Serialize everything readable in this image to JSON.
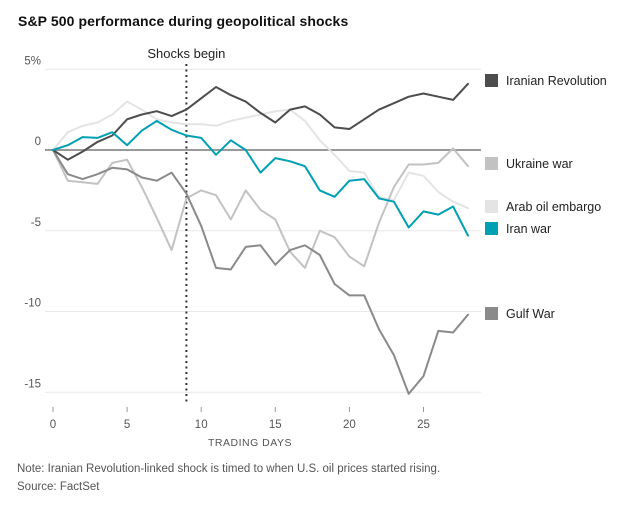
{
  "title": "S&P 500 performance during geopolitical shocks",
  "note": "Note: Iranian Revolution-linked shock is timed to when U.S. oil prices started rising.",
  "source": "Source: FactSet",
  "annotation_label": "Shocks begin",
  "chart_data": {
    "type": "line",
    "title": "S&P 500 performance during geopolitical shocks",
    "xlabel": "TRADING DAYS",
    "ylabel": "",
    "grid": true,
    "legend_position": "right",
    "xlim": [
      0,
      28.3
    ],
    "ylim": [
      -15.5,
      5.3
    ],
    "x_ticks": [
      0,
      5,
      10,
      15,
      20,
      25
    ],
    "y_ticks": [
      {
        "value": 5,
        "label": "5%"
      },
      {
        "value": 0,
        "label": "0"
      },
      {
        "value": -5,
        "label": "-5"
      },
      {
        "value": -10,
        "label": "-10"
      },
      {
        "value": -15,
        "label": "-15"
      }
    ],
    "annotation": {
      "text": "Shocks begin",
      "x": 9
    },
    "x": [
      0,
      1,
      2,
      3,
      4,
      5,
      6,
      7,
      8,
      9,
      10,
      11,
      12,
      13,
      14,
      15,
      16,
      17,
      18,
      19,
      20,
      21,
      22,
      23,
      24,
      25,
      26,
      27,
      28
    ],
    "series": [
      {
        "name": "Iranian Revolution",
        "color": "#4d4d4d",
        "values": [
          0,
          -0.6,
          -0.1,
          0.5,
          0.9,
          1.9,
          2.2,
          2.4,
          2.1,
          2.5,
          3.2,
          3.9,
          3.4,
          3.0,
          2.3,
          1.7,
          2.5,
          2.7,
          2.2,
          1.4,
          1.3,
          1.9,
          2.5,
          2.9,
          3.3,
          3.5,
          3.3,
          3.1,
          4.1
        ]
      },
      {
        "name": "Ukraine war",
        "color": "#c2c2c2",
        "values": [
          0,
          -1.9,
          -2.0,
          -2.1,
          -0.8,
          -0.6,
          -2.3,
          -4.2,
          -6.2,
          -3.0,
          -2.5,
          -2.8,
          -4.3,
          -2.5,
          -3.7,
          -4.3,
          -6.3,
          -7.3,
          -5.0,
          -5.4,
          -6.6,
          -7.2,
          -4.5,
          -2.3,
          -0.9,
          -0.9,
          -0.8,
          0.1,
          -1.0
        ]
      },
      {
        "name": "Arab oil embargo",
        "color": "#e4e4e4",
        "values": [
          0,
          1.1,
          1.5,
          1.7,
          2.2,
          3.0,
          2.5,
          1.9,
          1.7,
          1.6,
          1.6,
          1.5,
          1.8,
          2.0,
          2.2,
          2.4,
          2.5,
          1.8,
          0.6,
          -0.3,
          -1.3,
          -1.4,
          -2.9,
          -3.1,
          -1.4,
          -1.6,
          -2.6,
          -3.2,
          -3.6
        ]
      },
      {
        "name": "Iran war",
        "color": "#00a0b4",
        "values": [
          0,
          0.3,
          0.8,
          0.75,
          1.1,
          0.3,
          1.2,
          1.8,
          1.25,
          0.9,
          0.75,
          -0.3,
          0.6,
          0.0,
          -1.4,
          -0.5,
          -0.7,
          -1.0,
          -2.5,
          -2.9,
          -1.9,
          -1.8,
          -3.0,
          -3.2,
          -4.8,
          -3.8,
          -4.0,
          -3.5,
          -5.3
        ]
      },
      {
        "name": "Gulf War",
        "color": "#8a8a8a",
        "values": [
          0,
          -1.5,
          -1.8,
          -1.5,
          -1.1,
          -1.2,
          -1.7,
          -1.9,
          -1.4,
          -2.7,
          -4.7,
          -7.3,
          -7.4,
          -6.0,
          -5.9,
          -7.1,
          -6.2,
          -5.9,
          -6.5,
          -8.3,
          -9.0,
          -9.0,
          -11.1,
          -12.7,
          -15.1,
          -14.0,
          -11.2,
          -11.3,
          -10.2
        ]
      }
    ]
  }
}
